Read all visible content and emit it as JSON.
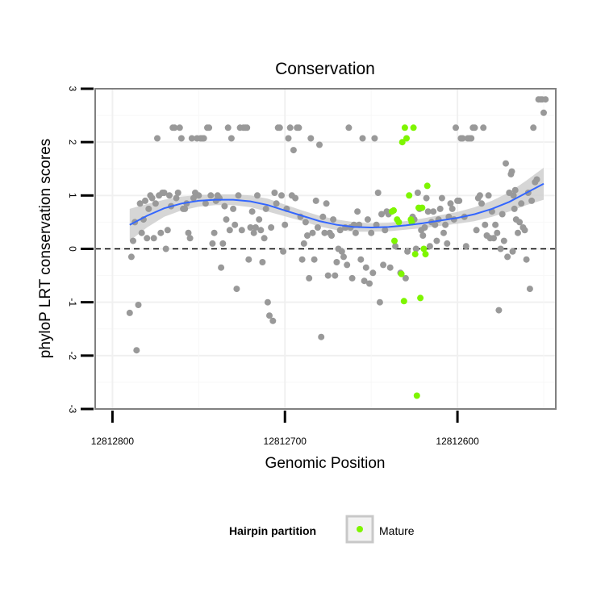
{
  "chart_data": {
    "type": "scatter",
    "title": "Conservation",
    "xlabel": "Genomic Position",
    "ylabel": "phyloP LRT conservation scores",
    "x_reversed": true,
    "xlim": [
      12812810,
      12812543
    ],
    "ylim": [
      -3,
      3
    ],
    "x_ticks": [
      12812800,
      12812700,
      12812600
    ],
    "x_tick_labels": [
      "12812800",
      "12812700",
      "12812600"
    ],
    "y_ticks": [
      -3,
      -2,
      -1,
      0,
      1,
      2,
      3
    ],
    "y_tick_labels": [
      "-3",
      "-2",
      "-1",
      "0",
      "1",
      "2",
      "3"
    ],
    "grid": true,
    "reference_line": {
      "y": 0,
      "style": "dashed"
    },
    "colors": {
      "other": "#999999",
      "mature": "#7ef500",
      "smooth": "#3366ff",
      "ribbon": "#cfcfcf",
      "panel_border": "#808080"
    },
    "legend": {
      "title": "Hairpin partition",
      "entries": [
        "Mature"
      ],
      "position": "bottom"
    },
    "series": [
      {
        "name": "",
        "points": [
          [
            12812790,
            -1.2
          ],
          [
            12812789,
            -0.15
          ],
          [
            12812788,
            0.15
          ],
          [
            12812787,
            0.5
          ],
          [
            12812786,
            -1.9
          ],
          [
            12812785,
            -1.05
          ],
          [
            12812784,
            0.85
          ],
          [
            12812783,
            0.3
          ],
          [
            12812782,
            0.55
          ],
          [
            12812781,
            0.9
          ],
          [
            12812780,
            0.2
          ],
          [
            12812779,
            0.75
          ],
          [
            12812778,
            1.0
          ],
          [
            12812777,
            0.95
          ],
          [
            12812776,
            0.2
          ],
          [
            12812775,
            0.85
          ],
          [
            12812774,
            2.07
          ],
          [
            12812773,
            1.0
          ],
          [
            12812772,
            0.3
          ],
          [
            12812771,
            1.05
          ],
          [
            12812770,
            1.05
          ],
          [
            12812769,
            0.0
          ],
          [
            12812768,
            0.35
          ],
          [
            12812767,
            1.0
          ],
          [
            12812766,
            0.8
          ],
          [
            12812765,
            2.27
          ],
          [
            12812764,
            2.27
          ],
          [
            12812763,
            0.95
          ],
          [
            12812762,
            1.05
          ],
          [
            12812761,
            2.27
          ],
          [
            12812760,
            2.07
          ],
          [
            12812759,
            0.75
          ],
          [
            12812758,
            0.75
          ],
          [
            12812757,
            0.85
          ],
          [
            12812756,
            0.3
          ],
          [
            12812755,
            0.2
          ],
          [
            12812754,
            2.07
          ],
          [
            12812753,
            0.95
          ],
          [
            12812752,
            1.05
          ],
          [
            12812751,
            2.07
          ],
          [
            12812750,
            1.0
          ],
          [
            12812749,
            2.07
          ],
          [
            12812748,
            2.07
          ],
          [
            12812747,
            2.07
          ],
          [
            12812746,
            0.85
          ],
          [
            12812745,
            2.27
          ],
          [
            12812744,
            2.27
          ],
          [
            12812743,
            1.0
          ],
          [
            12812742,
            0.1
          ],
          [
            12812741,
            0.3
          ],
          [
            12812740,
            0.9
          ],
          [
            12812739,
            1.0
          ],
          [
            12812738,
            0.95
          ],
          [
            12812737,
            -0.35
          ],
          [
            12812736,
            0.1
          ],
          [
            12812735,
            0.8
          ],
          [
            12812734,
            0.55
          ],
          [
            12812733,
            2.27
          ],
          [
            12812732,
            0.35
          ],
          [
            12812731,
            2.07
          ],
          [
            12812730,
            0.75
          ],
          [
            12812729,
            0.45
          ],
          [
            12812728,
            -0.75
          ],
          [
            12812727,
            1.0
          ],
          [
            12812726,
            2.27
          ],
          [
            12812725,
            0.35
          ],
          [
            12812724,
            2.27
          ],
          [
            12812723,
            2.27
          ],
          [
            12812722,
            2.27
          ],
          [
            12812721,
            -0.2
          ],
          [
            12812720,
            0.4
          ],
          [
            12812719,
            0.7
          ],
          [
            12812718,
            0.3
          ],
          [
            12812717,
            0.4
          ],
          [
            12812716,
            1.0
          ],
          [
            12812715,
            0.55
          ],
          [
            12812714,
            0.35
          ],
          [
            12812713,
            -0.25
          ],
          [
            12812712,
            0.2
          ],
          [
            12812711,
            0.75
          ],
          [
            12812710,
            -1.0
          ],
          [
            12812709,
            -1.25
          ],
          [
            12812708,
            0.4
          ],
          [
            12812707,
            -1.35
          ],
          [
            12812706,
            1.05
          ],
          [
            12812705,
            0.85
          ],
          [
            12812704,
            2.27
          ],
          [
            12812703,
            2.27
          ],
          [
            12812702,
            1.0
          ],
          [
            12812701,
            -0.05
          ],
          [
            12812700,
            0.45
          ],
          [
            12812699,
            0.75
          ],
          [
            12812698,
            2.07
          ],
          [
            12812697,
            2.27
          ],
          [
            12812696,
            1.0
          ],
          [
            12812695,
            1.85
          ],
          [
            12812694,
            0.95
          ],
          [
            12812693,
            2.27
          ],
          [
            12812692,
            2.27
          ],
          [
            12812691,
            0.6
          ],
          [
            12812690,
            -0.2
          ],
          [
            12812689,
            0.1
          ],
          [
            12812688,
            0.5
          ],
          [
            12812687,
            0.25
          ],
          [
            12812686,
            -0.55
          ],
          [
            12812685,
            2.07
          ],
          [
            12812684,
            0.3
          ],
          [
            12812683,
            -0.2
          ],
          [
            12812682,
            0.9
          ],
          [
            12812681,
            0.4
          ],
          [
            12812680,
            1.95
          ],
          [
            12812679,
            -1.65
          ],
          [
            12812678,
            0.6
          ],
          [
            12812677,
            0.3
          ],
          [
            12812676,
            0.85
          ],
          [
            12812675,
            -0.5
          ],
          [
            12812674,
            0.3
          ],
          [
            12812673,
            0.25
          ],
          [
            12812672,
            0.55
          ],
          [
            12812671,
            -0.5
          ],
          [
            12812670,
            -0.25
          ],
          [
            12812669,
            0.0
          ],
          [
            12812668,
            0.35
          ],
          [
            12812667,
            -0.05
          ],
          [
            12812666,
            -0.15
          ],
          [
            12812665,
            0.4
          ],
          [
            12812664,
            -0.3
          ],
          [
            12812663,
            2.27
          ],
          [
            12812662,
            0.4
          ],
          [
            12812661,
            -0.55
          ],
          [
            12812660,
            0.45
          ],
          [
            12812659,
            0.3
          ],
          [
            12812658,
            0.7
          ],
          [
            12812657,
            0.45
          ],
          [
            12812656,
            -0.2
          ],
          [
            12812655,
            2.07
          ],
          [
            12812654,
            -0.6
          ],
          [
            12812653,
            -0.35
          ],
          [
            12812652,
            0.55
          ],
          [
            12812651,
            -0.65
          ],
          [
            12812650,
            0.3
          ],
          [
            12812649,
            -0.45
          ],
          [
            12812648,
            2.07
          ],
          [
            12812647,
            0.45
          ],
          [
            12812646,
            1.05
          ],
          [
            12812645,
            -1.0
          ],
          [
            12812644,
            0.65
          ],
          [
            12812643,
            -0.3
          ],
          [
            12812642,
            0.35
          ],
          [
            12812641,
            0.7
          ],
          [
            12812640,
            0.65
          ],
          [
            12812639,
            -0.35
          ],
          [
            12812636,
            0.05
          ],
          [
            12812633,
            -0.45
          ],
          [
            12812630,
            -0.55
          ],
          [
            12812629,
            -0.05
          ],
          [
            12812626,
            0.6
          ],
          [
            12812625,
            0.55
          ],
          [
            12812624,
            0.0
          ],
          [
            12812623,
            1.05
          ],
          [
            12812622,
            0.75
          ],
          [
            12812621,
            0.35
          ],
          [
            12812620,
            0.25
          ],
          [
            12812619,
            0.4
          ],
          [
            12812618,
            0.95
          ],
          [
            12812617,
            0.7
          ],
          [
            12812616,
            0.05
          ],
          [
            12812615,
            0.5
          ],
          [
            12812614,
            0.7
          ],
          [
            12812613,
            0.45
          ],
          [
            12812612,
            0.15
          ],
          [
            12812611,
            0.55
          ],
          [
            12812610,
            0.75
          ],
          [
            12812609,
            0.95
          ],
          [
            12812608,
            0.3
          ],
          [
            12812607,
            0.45
          ],
          [
            12812606,
            0.1
          ],
          [
            12812605,
            0.6
          ],
          [
            12812604,
            0.85
          ],
          [
            12812603,
            0.75
          ],
          [
            12812602,
            0.55
          ],
          [
            12812601,
            2.27
          ],
          [
            12812600,
            0.9
          ],
          [
            12812599,
            0.9
          ],
          [
            12812598,
            2.07
          ],
          [
            12812597,
            2.07
          ],
          [
            12812596,
            0.6
          ],
          [
            12812595,
            0.05
          ],
          [
            12812594,
            2.07
          ],
          [
            12812593,
            2.07
          ],
          [
            12812592,
            2.07
          ],
          [
            12812591,
            2.27
          ],
          [
            12812590,
            2.27
          ],
          [
            12812589,
            0.35
          ],
          [
            12812588,
            0.95
          ],
          [
            12812587,
            1.0
          ],
          [
            12812586,
            0.85
          ],
          [
            12812585,
            2.27
          ],
          [
            12812584,
            0.45
          ],
          [
            12812583,
            0.25
          ],
          [
            12812582,
            1.0
          ],
          [
            12812581,
            0.2
          ],
          [
            12812580,
            0.7
          ],
          [
            12812579,
            0.2
          ],
          [
            12812578,
            0.45
          ],
          [
            12812577,
            0.3
          ],
          [
            12812576,
            -1.15
          ],
          [
            12812575,
            0.0
          ],
          [
            12812574,
            0.65
          ],
          [
            12812573,
            0.15
          ],
          [
            12812572,
            1.6
          ],
          [
            12812571,
            -0.15
          ],
          [
            12812570,
            1.05
          ],
          [
            12812569,
            1.4
          ],
          [
            12812568,
            -0.05
          ],
          [
            12812567,
            0.75
          ],
          [
            12812566,
            0.55
          ],
          [
            12812565,
            0.3
          ],
          [
            12812564,
            0.5
          ],
          [
            12812563,
            0.85
          ],
          [
            12812562,
            0.4
          ],
          [
            12812561,
            0.35
          ],
          [
            12812560,
            -0.2
          ],
          [
            12812559,
            1.05
          ],
          [
            12812558,
            -0.75
          ],
          [
            12812557,
            0.9
          ],
          [
            12812556,
            2.27
          ],
          [
            12812555,
            1.25
          ],
          [
            12812554,
            1.3
          ],
          [
            12812553,
            2.8
          ],
          [
            12812552,
            2.8
          ],
          [
            12812551,
            2.8
          ],
          [
            12812550,
            2.55
          ],
          [
            12812549,
            2.8
          ],
          [
            12812568.5,
            1.45
          ],
          [
            12812567.5,
            1.0
          ],
          [
            12812566.5,
            1.1
          ]
        ]
      },
      {
        "name": "Mature",
        "points": [
          [
            12812638,
            0.7
          ],
          [
            12812637,
            0.72
          ],
          [
            12812635,
            0.55
          ],
          [
            12812634,
            0.5
          ],
          [
            12812632,
            2.0
          ],
          [
            12812631,
            -0.98
          ],
          [
            12812630.5,
            2.27
          ],
          [
            12812629.5,
            2.07
          ],
          [
            12812628,
            1.0
          ],
          [
            12812627,
            0.55
          ],
          [
            12812626.5,
            0.5
          ],
          [
            12812625.5,
            2.27
          ],
          [
            12812624.5,
            -0.1
          ],
          [
            12812623.5,
            -2.75
          ],
          [
            12812622.5,
            0.77
          ],
          [
            12812621.5,
            -0.92
          ],
          [
            12812620.5,
            0.77
          ],
          [
            12812619.5,
            0.0
          ],
          [
            12812618.5,
            -0.1
          ],
          [
            12812617.5,
            1.18
          ],
          [
            12812636.5,
            0.15
          ],
          [
            12812632.5,
            -0.47
          ]
        ]
      }
    ],
    "smooth": {
      "x": [
        12812790,
        12812780,
        12812770,
        12812760,
        12812750,
        12812740,
        12812730,
        12812720,
        12812710,
        12812700,
        12812690,
        12812680,
        12812670,
        12812660,
        12812650,
        12812640,
        12812630,
        12812620,
        12812610,
        12812600,
        12812590,
        12812580,
        12812570,
        12812560,
        12812550
      ],
      "y": [
        0.45,
        0.62,
        0.76,
        0.85,
        0.9,
        0.92,
        0.92,
        0.89,
        0.82,
        0.72,
        0.62,
        0.52,
        0.45,
        0.41,
        0.4,
        0.41,
        0.44,
        0.48,
        0.53,
        0.58,
        0.65,
        0.75,
        0.88,
        1.05,
        1.22
      ],
      "lower": [
        0.15,
        0.4,
        0.6,
        0.72,
        0.79,
        0.82,
        0.82,
        0.78,
        0.7,
        0.61,
        0.52,
        0.42,
        0.35,
        0.32,
        0.32,
        0.33,
        0.36,
        0.39,
        0.43,
        0.47,
        0.52,
        0.6,
        0.7,
        0.82,
        0.92
      ],
      "upper": [
        0.75,
        0.84,
        0.92,
        0.98,
        1.01,
        1.02,
        1.02,
        1.0,
        0.94,
        0.83,
        0.72,
        0.62,
        0.55,
        0.5,
        0.48,
        0.49,
        0.52,
        0.57,
        0.63,
        0.69,
        0.78,
        0.9,
        1.06,
        1.28,
        1.52
      ]
    }
  }
}
